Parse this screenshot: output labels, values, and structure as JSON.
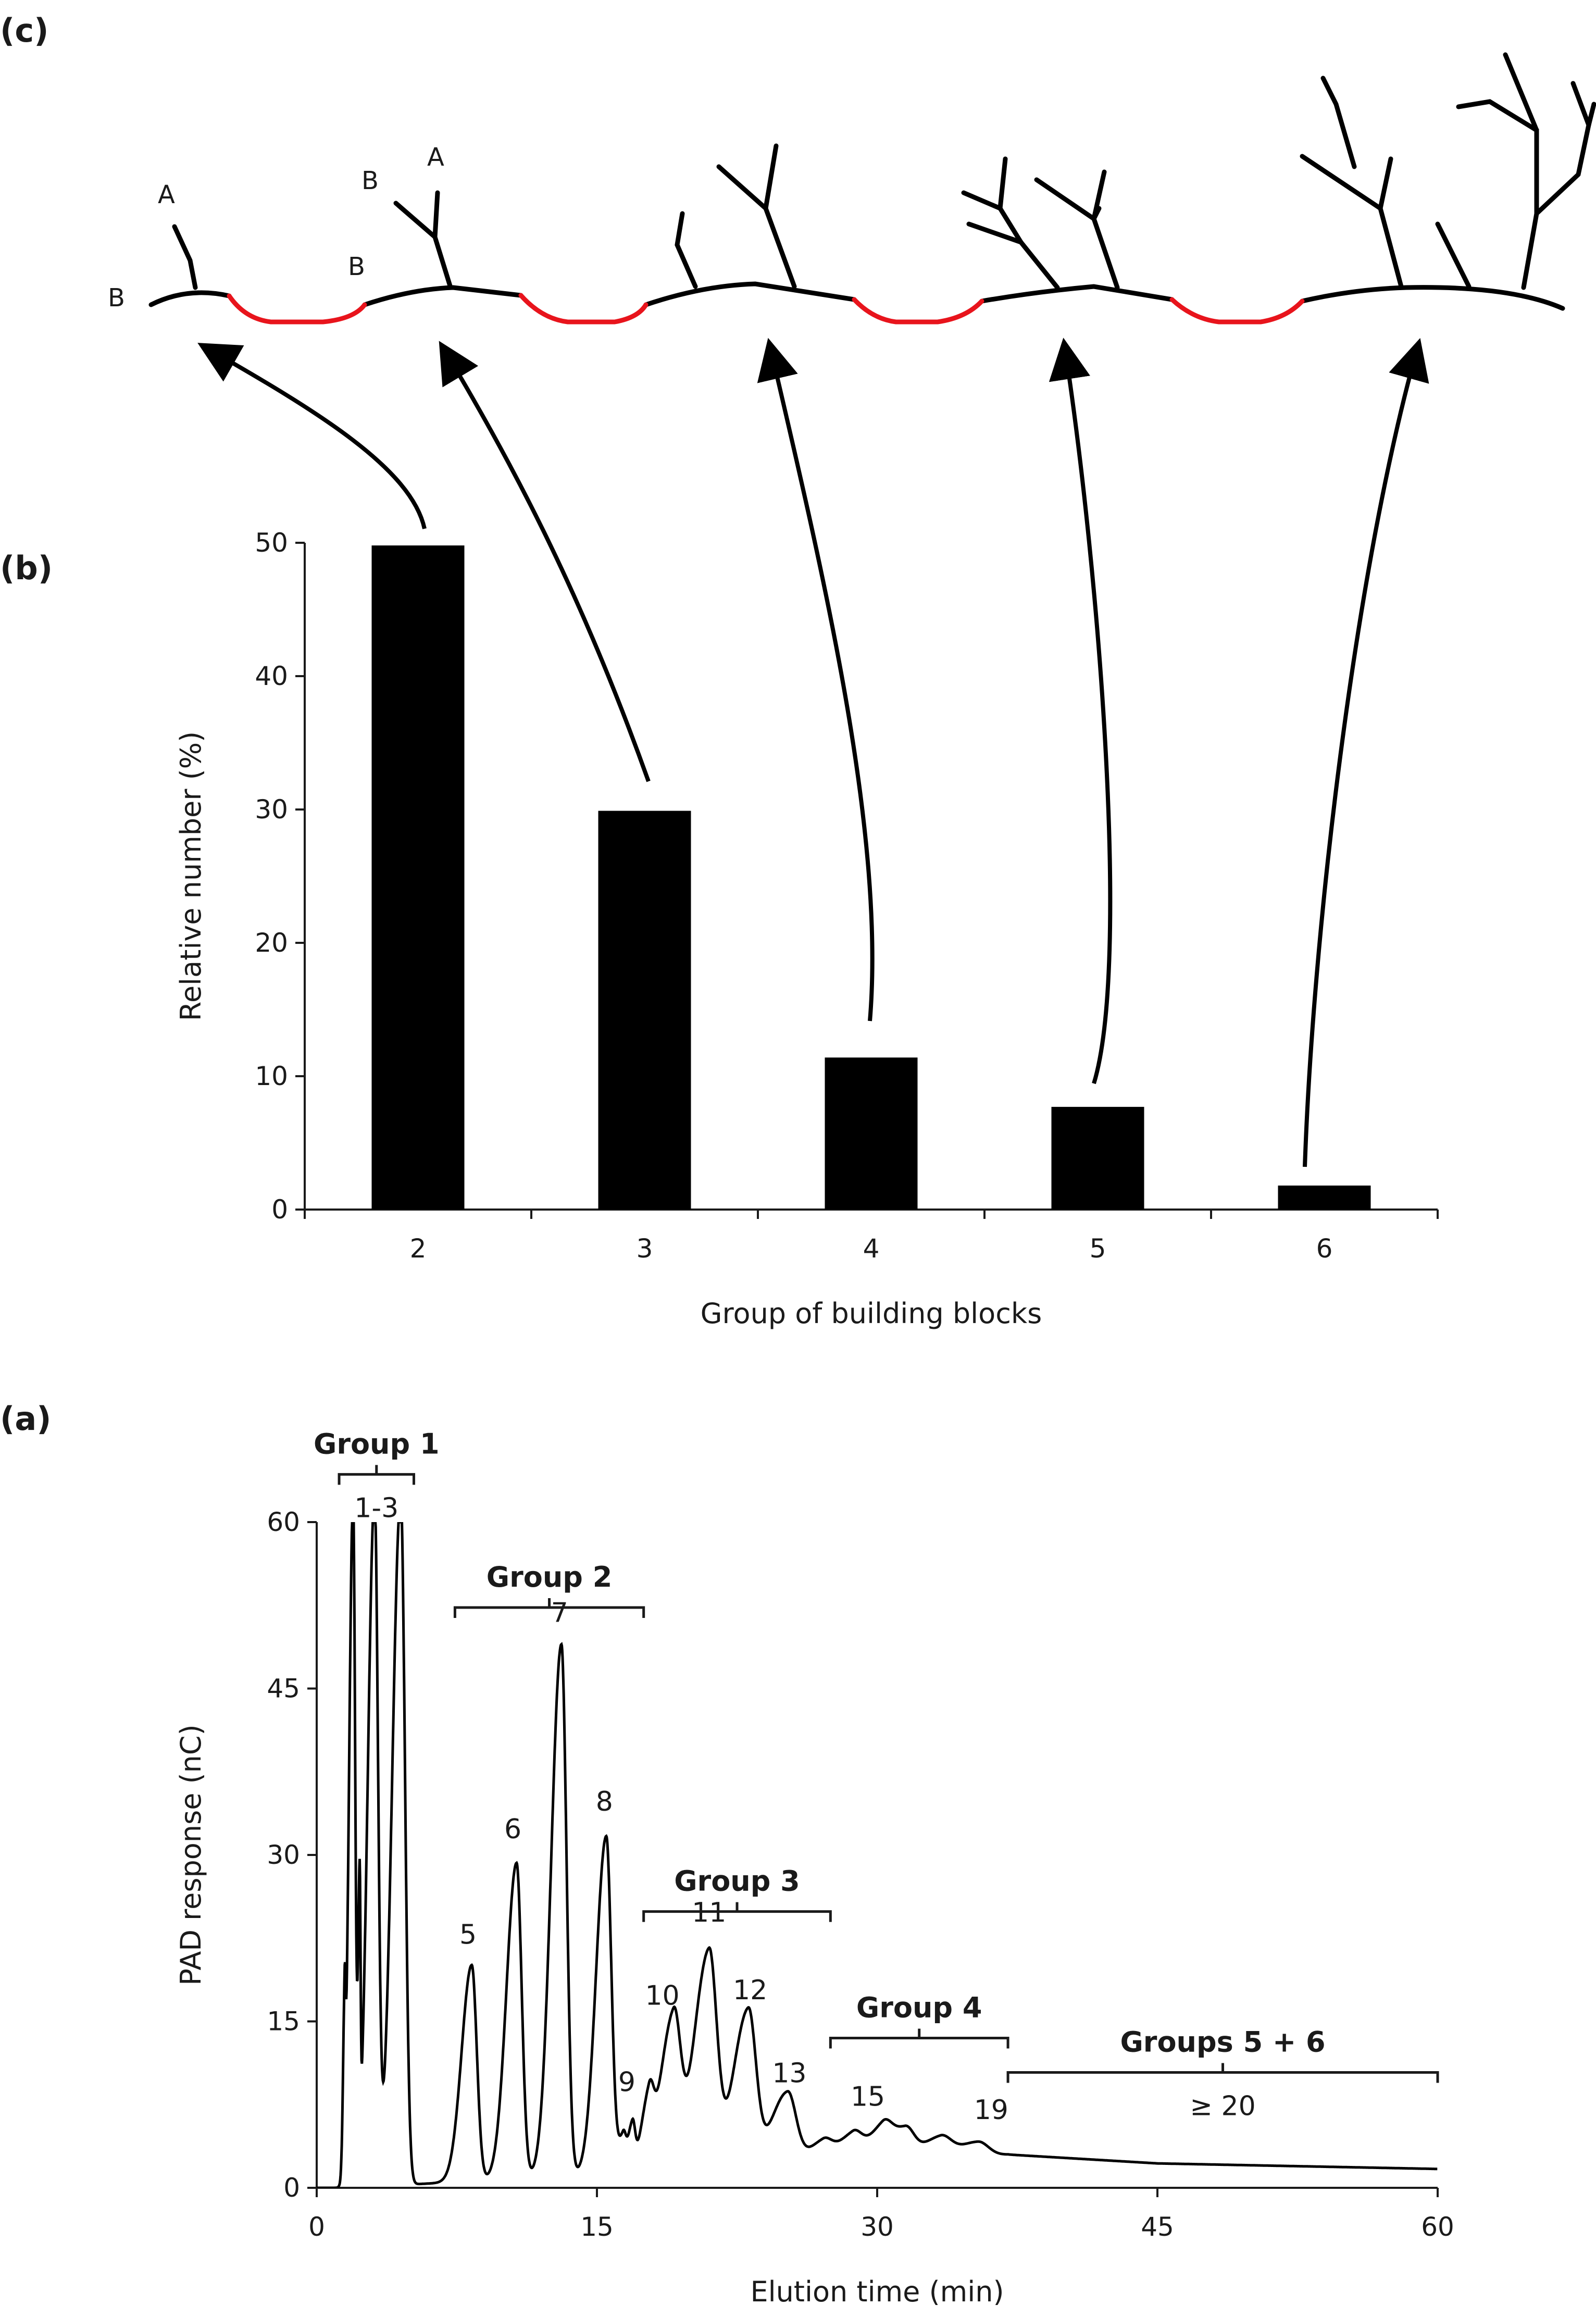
{
  "panels": {
    "c": {
      "label": "(c)"
    },
    "b": {
      "label": "(b)"
    },
    "a": {
      "label": "(a)"
    }
  },
  "colors": {
    "ink": "#000000",
    "linker": "#e8141c",
    "axis": "#1a1a1a"
  },
  "icons": {
    "structure": "branched-oligosaccharide-schematic",
    "pointer": "curved-arrow"
  },
  "structure": {
    "letters": {
      "A": "A",
      "B": "B"
    }
  },
  "chart_data": [
    {
      "id": "b",
      "type": "bar",
      "categories": [
        "2",
        "3",
        "4",
        "5",
        "6"
      ],
      "values": [
        49.8,
        29.9,
        11.4,
        7.7,
        1.8
      ],
      "xlabel": "Group of building blocks",
      "ylabel": "Relative number (%)",
      "ylim": [
        0,
        50
      ],
      "yticks": [
        0,
        10,
        20,
        30,
        40,
        50
      ],
      "grid": false,
      "bar_color": "#000000"
    },
    {
      "id": "a",
      "type": "line",
      "xlabel": "Elution time (min)",
      "ylabel": "PAD response (nC)",
      "xlim": [
        0,
        60
      ],
      "ylim": [
        0,
        60
      ],
      "xticks": [
        0,
        15,
        30,
        45,
        60
      ],
      "yticks": [
        0,
        15,
        30,
        45,
        60
      ],
      "grid": false,
      "baseline": [
        [
          0,
          0
        ],
        [
          1.4,
          0
        ],
        [
          37,
          3
        ],
        [
          45,
          2.2
        ],
        [
          60,
          1.7
        ]
      ],
      "peaks": [
        {
          "t": 1.5,
          "h": 13,
          "w": 0.05
        },
        {
          "t": 1.95,
          "h": 62,
          "w": 0.12
        },
        {
          "t": 2.3,
          "h": 24,
          "w": 0.05
        },
        {
          "t": 3.1,
          "h": 62,
          "w": 0.2
        },
        {
          "t": 4.5,
          "h": 62,
          "w": 0.25
        },
        {
          "t": 8.3,
          "h": 19.5,
          "w": 0.3
        },
        {
          "t": 10.7,
          "h": 28.5,
          "w": 0.3
        },
        {
          "t": 13.1,
          "h": 48,
          "w": 0.3
        },
        {
          "t": 15.5,
          "h": 30.5,
          "w": 0.3
        },
        {
          "t": 16.4,
          "h": 3,
          "w": 0.15
        },
        {
          "t": 16.9,
          "h": 4,
          "w": 0.15
        },
        {
          "t": 17.8,
          "h": 5.5,
          "w": 0.25
        },
        {
          "t": 19.1,
          "h": 13.5,
          "w": 0.4
        },
        {
          "t": 21,
          "h": 19.5,
          "w": 0.45
        },
        {
          "t": 23.1,
          "h": 14,
          "w": 0.45
        },
        {
          "t": 25.2,
          "h": 6.5,
          "w": 0.5
        },
        {
          "t": 27.1,
          "h": 1.8,
          "w": 0.5
        },
        {
          "t": 28.7,
          "h": 2.3,
          "w": 0.5
        },
        {
          "t": 30.3,
          "h": 2.5,
          "w": 0.5
        },
        {
          "t": 31.5,
          "h": 2.6,
          "w": 0.5
        },
        {
          "t": 33.4,
          "h": 1.8,
          "w": 0.6
        },
        {
          "t": 35.4,
          "h": 1.3,
          "w": 0.6
        }
      ],
      "peak_labels": [
        {
          "text": "5",
          "t": 8.1,
          "y": 22
        },
        {
          "text": "6",
          "t": 10.5,
          "y": 31.5
        },
        {
          "text": "7",
          "t": 13,
          "y": 51
        },
        {
          "text": "8",
          "t": 15.4,
          "y": 34
        },
        {
          "text": "9",
          "t": 16.6,
          "y": 8.7
        },
        {
          "text": "10",
          "t": 18.5,
          "y": 16.5
        },
        {
          "text": "11",
          "t": 21,
          "y": 24
        },
        {
          "text": "12",
          "t": 23.2,
          "y": 17
        },
        {
          "text": "13",
          "t": 25.3,
          "y": 9.5
        },
        {
          "text": "15",
          "t": 29.5,
          "y": 7.4
        },
        {
          "text": "19",
          "t": 36.1,
          "y": 6.2
        }
      ],
      "groups": [
        {
          "label": "Group 1",
          "range": "1-3",
          "start": 1.2,
          "end": 5.2,
          "y": 64.3
        },
        {
          "label": "Group 2",
          "start": 7.4,
          "end": 17.5,
          "y": 52.3
        },
        {
          "label": "Group 3",
          "range": "",
          "start": 17.5,
          "end": 27.5,
          "y": 24.9
        },
        {
          "label": "Group 4",
          "start": 27.5,
          "end": 37,
          "y": 13.5
        },
        {
          "label": "Groups 5 + 6",
          "range": "≥ 20",
          "start": 37,
          "end": 60,
          "y": 10.4
        }
      ]
    }
  ]
}
